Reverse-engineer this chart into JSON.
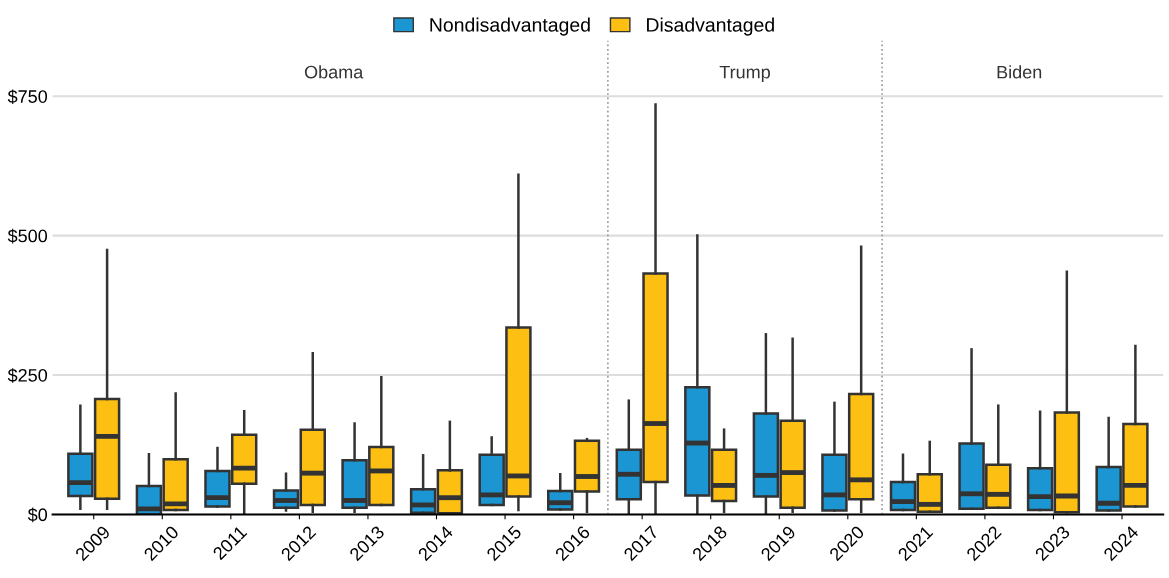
{
  "chart_data": {
    "type": "box",
    "categories": [
      "2009",
      "2010",
      "2011",
      "2012",
      "2013",
      "2014",
      "2015",
      "2016",
      "2017",
      "2018",
      "2019",
      "2020",
      "2021",
      "2022",
      "2023",
      "2024"
    ],
    "series": [
      {
        "name": "Nondisadvantaged",
        "color": "#1b96d3",
        "boxes": [
          {
            "low": 10,
            "q1": 33,
            "median": 57,
            "q3": 109,
            "high": 195
          },
          {
            "low": 0,
            "q1": 0,
            "median": 10,
            "q3": 51,
            "high": 108
          },
          {
            "low": 14,
            "q1": 14,
            "median": 30,
            "q3": 78,
            "high": 119
          },
          {
            "low": 7,
            "q1": 12,
            "median": 25,
            "q3": 43,
            "high": 73
          },
          {
            "low": 5,
            "q1": 12,
            "median": 25,
            "q3": 97,
            "high": 163
          },
          {
            "low": 0,
            "q1": 3,
            "median": 17,
            "q3": 45,
            "high": 106
          },
          {
            "low": 17,
            "q1": 17,
            "median": 35,
            "q3": 107,
            "high": 138
          },
          {
            "low": 9,
            "q1": 9,
            "median": 21,
            "q3": 42,
            "high": 72
          },
          {
            "low": 0,
            "q1": 27,
            "median": 72,
            "q3": 116,
            "high": 204
          },
          {
            "low": 0,
            "q1": 34,
            "median": 128,
            "q3": 228,
            "high": 500
          },
          {
            "low": 0,
            "q1": 32,
            "median": 70,
            "q3": 181,
            "high": 323
          },
          {
            "low": 7,
            "q1": 7,
            "median": 35,
            "q3": 107,
            "high": 200
          },
          {
            "low": 8,
            "q1": 8,
            "median": 23,
            "q3": 58,
            "high": 107
          },
          {
            "low": 10,
            "q1": 10,
            "median": 37,
            "q3": 127,
            "high": 296
          },
          {
            "low": 8,
            "q1": 8,
            "median": 32,
            "q3": 83,
            "high": 184
          },
          {
            "low": 7,
            "q1": 7,
            "median": 20,
            "q3": 85,
            "high": 173
          }
        ]
      },
      {
        "name": "Disadvantaged",
        "color": "#fcbf12",
        "boxes": [
          {
            "low": 10,
            "q1": 28,
            "median": 140,
            "q3": 207,
            "high": 474
          },
          {
            "low": 8,
            "q1": 8,
            "median": 19,
            "q3": 99,
            "high": 217
          },
          {
            "low": 0,
            "q1": 55,
            "median": 83,
            "q3": 143,
            "high": 185
          },
          {
            "low": 5,
            "q1": 17,
            "median": 74,
            "q3": 152,
            "high": 289
          },
          {
            "low": 17,
            "q1": 17,
            "median": 78,
            "q3": 121,
            "high": 246
          },
          {
            "low": 0,
            "q1": 2,
            "median": 30,
            "q3": 79,
            "high": 166
          },
          {
            "low": 8,
            "q1": 32,
            "median": 69,
            "q3": 335,
            "high": 609
          },
          {
            "low": 5,
            "q1": 41,
            "median": 68,
            "q3": 132,
            "high": 135
          },
          {
            "low": 0,
            "q1": 58,
            "median": 163,
            "q3": 432,
            "high": 735
          },
          {
            "low": 5,
            "q1": 24,
            "median": 52,
            "q3": 116,
            "high": 152
          },
          {
            "low": 5,
            "q1": 12,
            "median": 75,
            "q3": 168,
            "high": 315
          },
          {
            "low": 5,
            "q1": 27,
            "median": 62,
            "q3": 216,
            "high": 480
          },
          {
            "low": 5,
            "q1": 5,
            "median": 18,
            "q3": 72,
            "high": 130
          },
          {
            "low": 12,
            "q1": 12,
            "median": 36,
            "q3": 89,
            "high": 195
          },
          {
            "low": 4,
            "q1": 4,
            "median": 33,
            "q3": 183,
            "high": 435
          },
          {
            "low": 14,
            "q1": 14,
            "median": 52,
            "q3": 162,
            "high": 302
          }
        ]
      }
    ],
    "ylim": [
      0,
      850
    ],
    "yticks": [
      {
        "value": 0,
        "label": "$0"
      },
      {
        "value": 250,
        "label": "$250"
      },
      {
        "value": 500,
        "label": "$500"
      },
      {
        "value": 750,
        "label": "$750"
      }
    ],
    "annotations": [
      "Obama",
      "Trump",
      "Biden"
    ],
    "grid": "y",
    "legend": "top"
  }
}
